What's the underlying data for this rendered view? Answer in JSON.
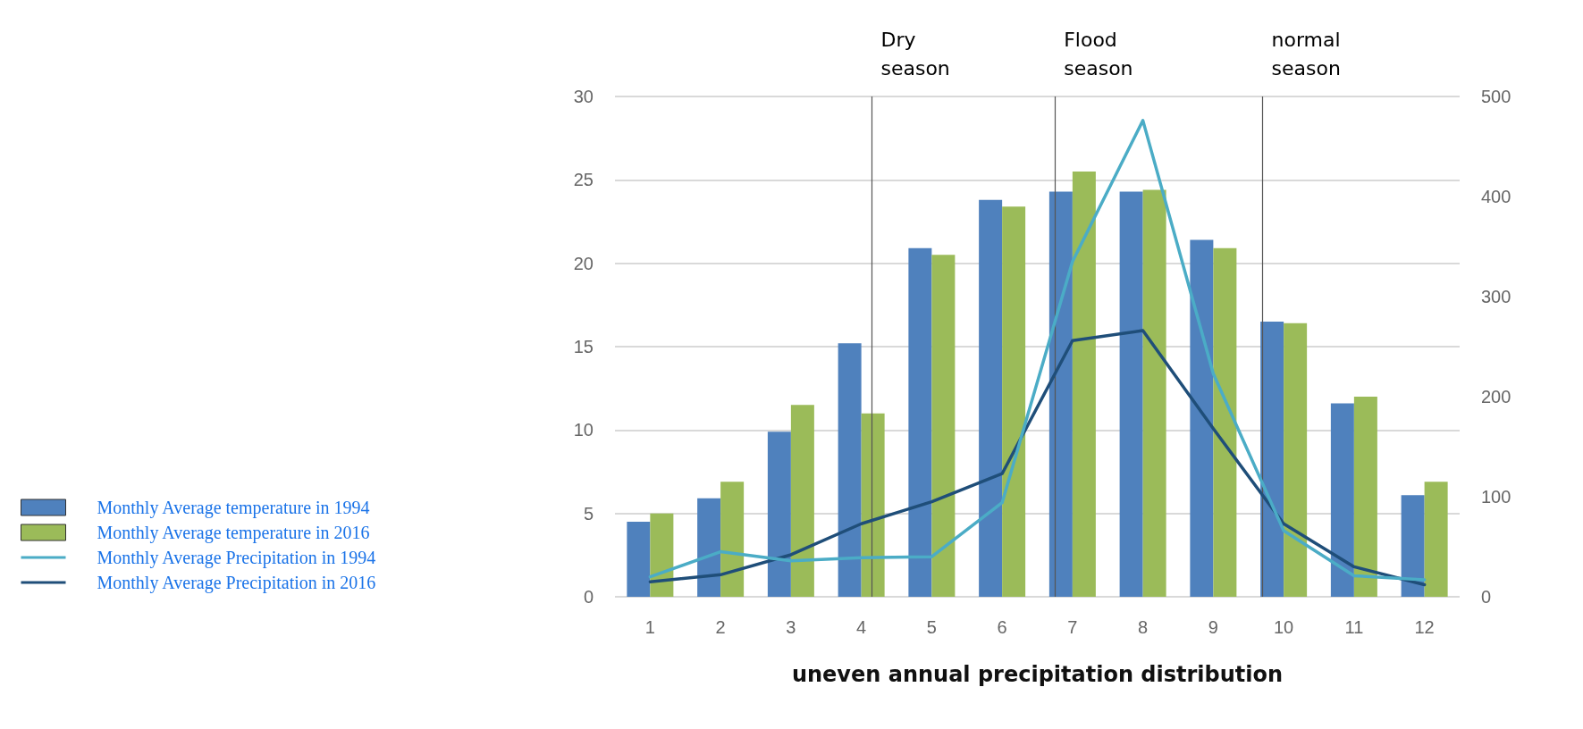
{
  "chart_data": {
    "type": "bar",
    "xlabel": "uneven annual precipitation distribution",
    "x": [
      1,
      2,
      3,
      4,
      5,
      6,
      7,
      8,
      9,
      10,
      11,
      12
    ],
    "xlim": [
      0.5,
      12.5
    ],
    "xticks": [
      1,
      2,
      3,
      4,
      5,
      6,
      7,
      8,
      9,
      10,
      11,
      12
    ],
    "ylim": [
      0,
      30
    ],
    "yticks": [
      0,
      5,
      10,
      15,
      20,
      25,
      30
    ],
    "y2lim": [
      0,
      500
    ],
    "y2ticks": [
      0,
      100,
      200,
      300,
      400,
      500
    ],
    "grid": "y",
    "legend": "left",
    "marker": "none",
    "series": [
      {
        "name": "Monthly Average temperature in 1994",
        "color": "#4f81bd",
        "values": [
          4.5,
          5.9,
          9.9,
          15.2,
          20.9,
          23.8,
          24.3,
          24.3,
          21.4,
          16.5,
          11.6,
          6.1
        ]
      },
      {
        "name": "Monthly Average temperature in 2016",
        "color": "#9bbb59",
        "values": [
          5.0,
          6.9,
          11.5,
          11.0,
          20.5,
          23.4,
          25.5,
          24.4,
          20.9,
          16.4,
          12.0,
          6.9
        ]
      },
      {
        "name": "Monthly Average Precipitation in 1994",
        "type": "line",
        "axis": "y2",
        "color": "#4bacc6",
        "values": [
          20,
          45,
          36,
          39,
          40,
          94,
          335,
          476,
          223,
          66,
          21,
          17
        ]
      },
      {
        "name": "Monthly Average Precipitation in 2016",
        "type": "line",
        "axis": "y2",
        "color": "#1f4e79",
        "values": [
          15,
          22,
          42,
          73,
          95,
          123,
          256,
          266,
          168,
          73,
          30,
          12
        ]
      }
    ],
    "ref_lines": [
      {
        "axis": "x",
        "value": 4.15,
        "label": "Dry season",
        "color": "#555555"
      },
      {
        "axis": "x",
        "value": 6.75,
        "label": "Flood season",
        "color": "#555555"
      },
      {
        "axis": "x",
        "value": 9.7,
        "label": "normal season",
        "color": "#555555"
      }
    ]
  }
}
